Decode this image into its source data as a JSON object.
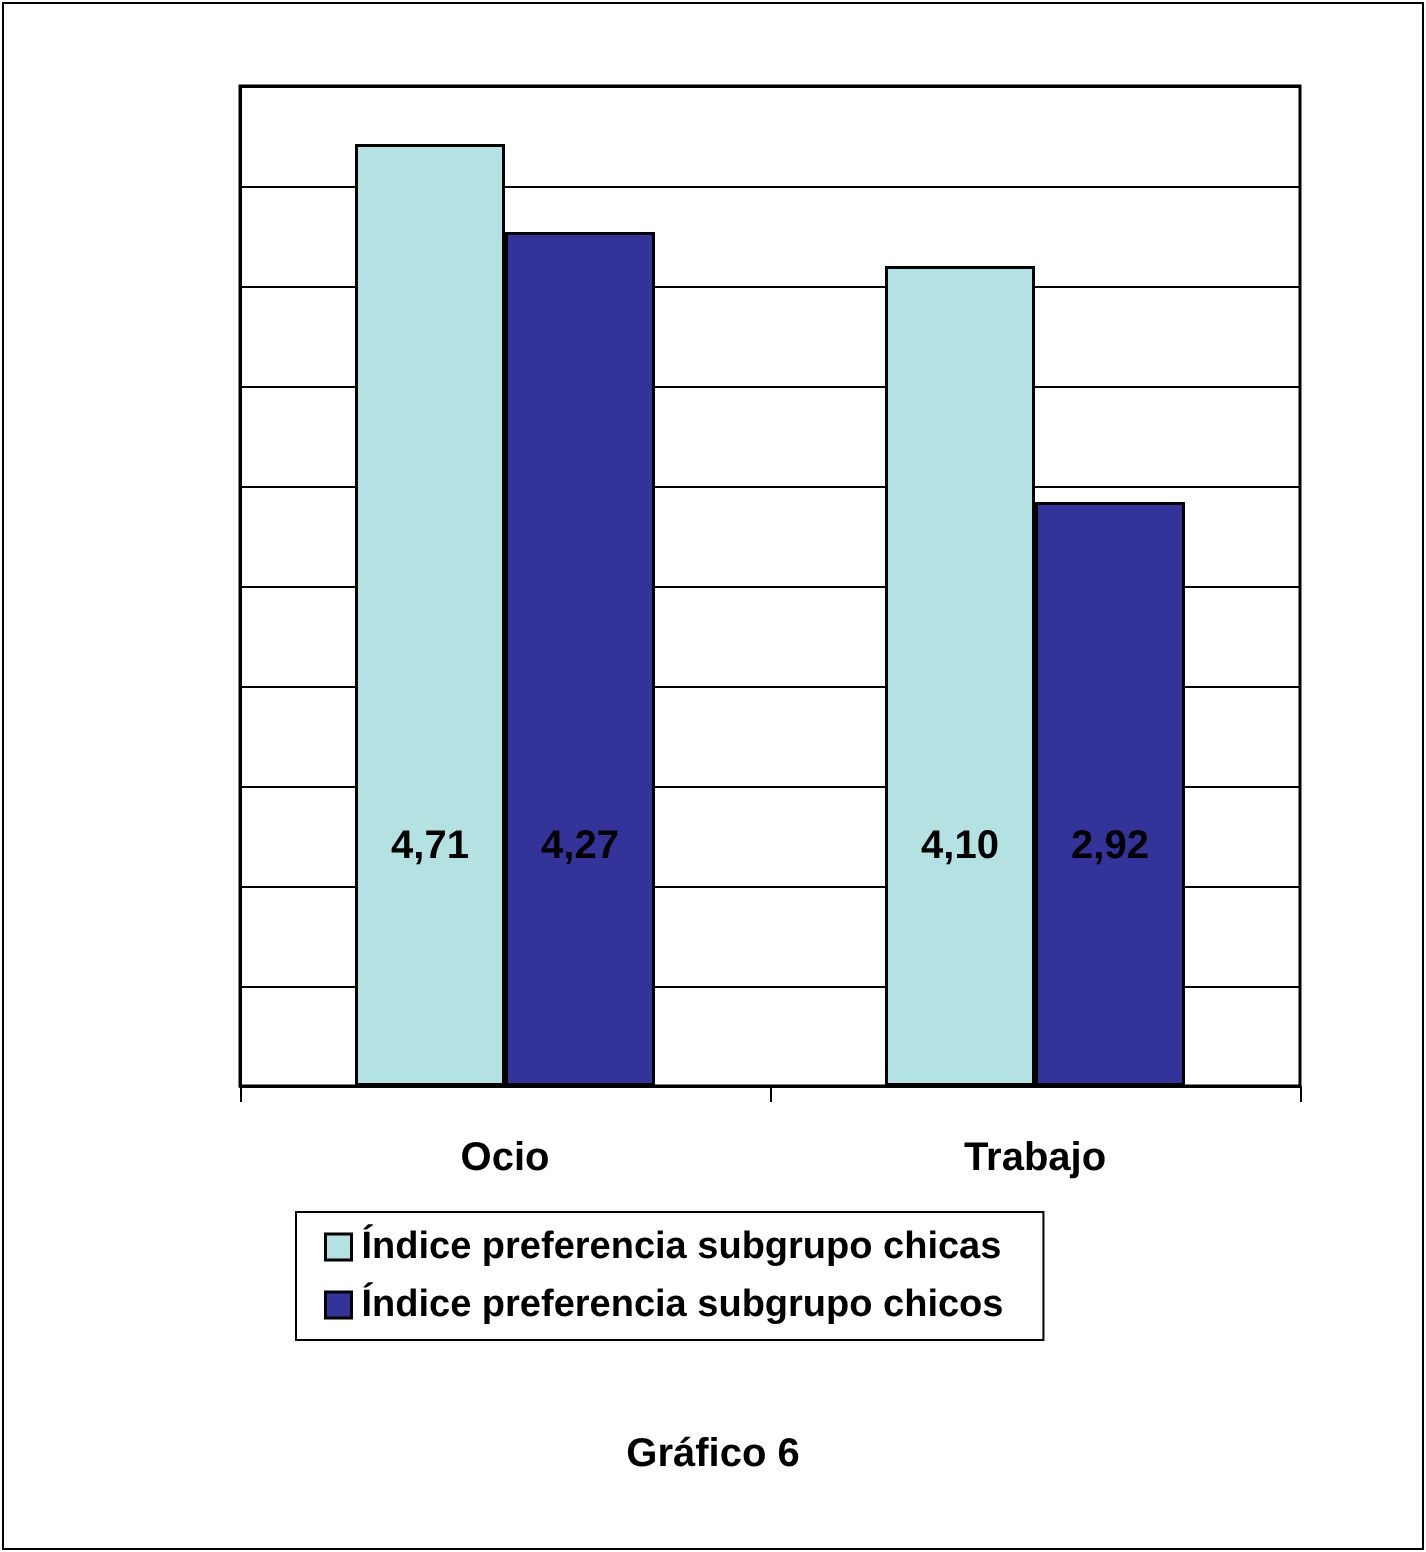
{
  "chart_data": {
    "type": "bar",
    "title": "Gráfico 6",
    "categories": [
      "Ocio",
      "Trabajo"
    ],
    "series": [
      {
        "name": "Índice preferencia subgrupo chicas",
        "color": "#b4e1e1",
        "values": [
          4.71,
          4.1
        ],
        "value_labels": [
          "4,71",
          "4,10"
        ]
      },
      {
        "name": "Índice preferencia subgrupo chicos",
        "color": "#333399",
        "values": [
          4.27,
          2.92
        ],
        "value_labels": [
          "4,27",
          "2,92"
        ]
      }
    ],
    "ylim": [
      0,
      5
    ],
    "yticks": [
      {
        "value": 0,
        "label": null
      },
      {
        "value": 0.5,
        "label": null
      },
      {
        "value": 1,
        "label": null
      },
      {
        "value": 1.5,
        "label": null
      },
      {
        "value": 2,
        "label": null
      },
      {
        "value": 2.5,
        "label": null
      },
      {
        "value": 3,
        "label": null
      },
      {
        "value": 3.5,
        "label": null
      },
      {
        "value": 4,
        "label": null
      },
      {
        "value": 4.5,
        "label": null
      },
      {
        "value": 5,
        "label": null
      }
    ],
    "tick_labels": "x",
    "grid": "y",
    "legend": "bottom"
  }
}
